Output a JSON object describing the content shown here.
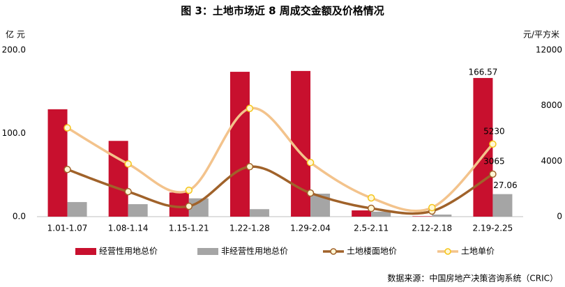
{
  "chart_data": {
    "type": "bar",
    "title": "图 3：土地市场近 8 周成交金额及价格情况",
    "y_label": "亿 元",
    "y2_label": "元/平方米",
    "source": "数据来源：中国房地产决策咨询系统（CRIC）",
    "categories": [
      "1.01-1.07",
      "1.08-1.14",
      "1.15-1.21",
      "1.22-1.28",
      "1.29-2.04",
      "2.5-2.11",
      "2.12-2.18",
      "2.19-2.25"
    ],
    "ylim": [
      0,
      200
    ],
    "yticks": [
      {
        "value": 0,
        "label": "0.0"
      },
      {
        "value": 100,
        "label": "100.0"
      },
      {
        "value": 200,
        "label": "200.0"
      }
    ],
    "y2lim": [
      0,
      12000
    ],
    "y2ticks": [
      0,
      4000,
      8000,
      12000
    ],
    "grid": false,
    "series": [
      {
        "name": "经营性用地总价",
        "type": "bar",
        "color": "#c8102e",
        "values": [
          129,
          91,
          29,
          174,
          175,
          7.5,
          0.5,
          166.57
        ],
        "label_last": true
      },
      {
        "name": "非经营性用地总价",
        "type": "bar",
        "color": "#a5a5a5",
        "values": [
          17.5,
          15,
          22,
          9,
          27.6,
          6,
          2.5,
          27.06
        ],
        "label_last": true
      },
      {
        "name": "土地楼面地价",
        "type": "line",
        "axis": "y2",
        "color": "#a0622a",
        "values": [
          3400,
          1800,
          750,
          3600,
          1700,
          600,
          400,
          3065
        ],
        "label_last": true
      },
      {
        "name": "土地单价",
        "type": "line",
        "axis": "y2",
        "color": "#f3c38c",
        "values": [
          6400,
          3800,
          1900,
          7800,
          3900,
          1350,
          650,
          5230
        ],
        "label_last": true
      }
    ]
  }
}
